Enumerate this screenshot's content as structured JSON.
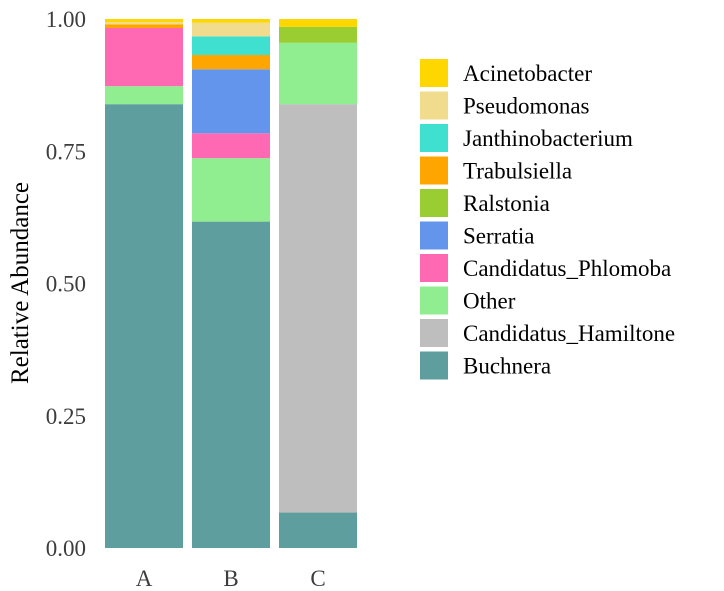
{
  "chart_data": {
    "type": "bar",
    "stacked": true,
    "categories": [
      "A",
      "B",
      "C"
    ],
    "ylabel": "Relative Abundance",
    "xlabel": "",
    "ylim": [
      0,
      1
    ],
    "y_ticks": [
      0.0,
      0.25,
      0.5,
      0.75,
      1.0
    ],
    "y_tick_labels": [
      "0.00",
      "0.25",
      "0.50",
      "0.75",
      "1.00"
    ],
    "grid": false,
    "legend_position": "right",
    "series": [
      {
        "name": "Buchnera",
        "color": "#5f9e9e",
        "values": [
          0.839,
          0.617,
          0.067
        ]
      },
      {
        "name": "Candidatus_Hamiltone",
        "color": "#bebebe",
        "values": [
          0.0,
          0.0,
          0.772
        ]
      },
      {
        "name": "Other",
        "color": "#90ee90",
        "values": [
          0.034,
          0.12,
          0.116
        ]
      },
      {
        "name": "Candidatus_Phlomoba",
        "color": "#ff69b4",
        "values": [
          0.11,
          0.047,
          0.0
        ]
      },
      {
        "name": "Serratia",
        "color": "#6495ed",
        "values": [
          0.0,
          0.121,
          0.0
        ]
      },
      {
        "name": "Ralstonia",
        "color": "#9acd32",
        "values": [
          0.0,
          0.0,
          0.03
        ]
      },
      {
        "name": "Trabulsiella",
        "color": "#ffa500",
        "values": [
          0.007,
          0.027,
          0.0
        ]
      },
      {
        "name": "Janthinobacterium",
        "color": "#40e0d0",
        "values": [
          0.0,
          0.035,
          0.0
        ]
      },
      {
        "name": "Pseudomonas",
        "color": "#f0dc8c",
        "values": [
          0.004,
          0.026,
          0.0
        ]
      },
      {
        "name": "Acinetobacter",
        "color": "#ffd700",
        "values": [
          0.006,
          0.007,
          0.015
        ]
      }
    ]
  }
}
